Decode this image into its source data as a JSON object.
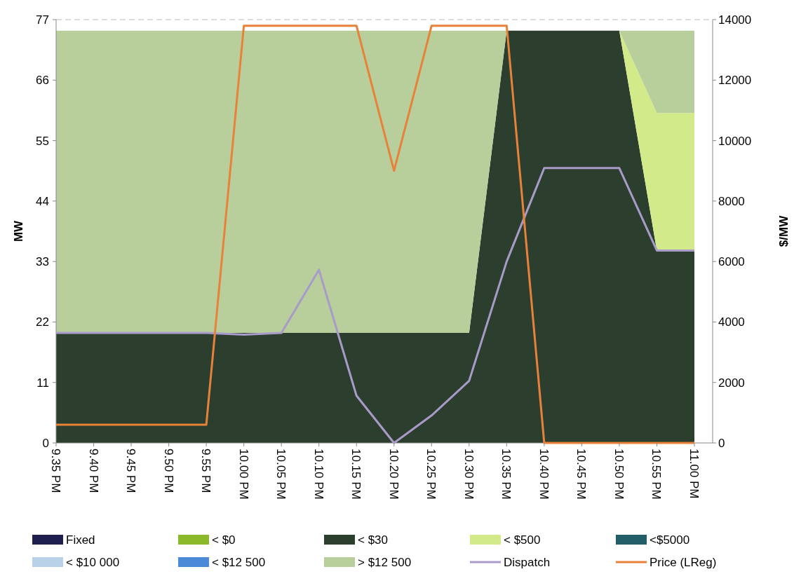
{
  "chart_data": {
    "type": "area",
    "stacked": true,
    "ylabel": "MW",
    "y2label": "$/MW",
    "categories": [
      "9.35 PM",
      "9.40 PM",
      "9.45 PM",
      "9.50 PM",
      "9.55 PM",
      "10.00 PM",
      "10.05 PM",
      "10.10 PM",
      "10.15 PM",
      "10.20 PM",
      "10.25 PM",
      "10.30 PM",
      "10.35 PM",
      "10.40 PM",
      "10.45 PM",
      "10.50 PM",
      "10.55 PM",
      "11.00 PM"
    ],
    "series": [
      {
        "name": "Fixed",
        "color": "#1f1f4f",
        "values": [
          null,
          null,
          null,
          null,
          null,
          null,
          null,
          null,
          null,
          null,
          null,
          null,
          null,
          null,
          null,
          null,
          null,
          null
        ]
      },
      {
        "name": "< $0",
        "color": "#8cb92a",
        "values": [
          null,
          null,
          null,
          null,
          null,
          null,
          null,
          null,
          null,
          null,
          null,
          null,
          null,
          null,
          null,
          null,
          null,
          null
        ]
      },
      {
        "name": "< $30",
        "color": "#2c3e2d",
        "values": [
          20,
          20,
          20,
          20,
          20,
          20,
          20,
          20,
          20,
          20,
          20,
          20,
          75,
          75,
          75,
          75,
          35,
          35
        ]
      },
      {
        "name": "< $500",
        "color": "#d3ea8b",
        "values": [
          0,
          0,
          0,
          0,
          0,
          0,
          0,
          0,
          0,
          0,
          0,
          0,
          0,
          0,
          0,
          0,
          25,
          25
        ]
      },
      {
        "name": "<$5000",
        "color": "#215e6a",
        "values": [
          null,
          null,
          null,
          null,
          null,
          null,
          null,
          null,
          null,
          null,
          null,
          null,
          null,
          null,
          null,
          null,
          null,
          null
        ]
      },
      {
        "name": "< $10 000",
        "color": "#b8d0e8",
        "values": [
          null,
          null,
          null,
          null,
          null,
          null,
          null,
          null,
          null,
          null,
          null,
          null,
          null,
          null,
          null,
          null,
          null,
          null
        ]
      },
      {
        "name": "< $12 500",
        "color": "#4a8ad6",
        "values": [
          null,
          null,
          null,
          null,
          null,
          null,
          null,
          null,
          null,
          null,
          null,
          null,
          null,
          null,
          null,
          null,
          null,
          null
        ]
      },
      {
        "name": "> $12 500",
        "color": "#b8cf9b",
        "values": [
          55,
          55,
          55,
          55,
          55,
          55,
          55,
          55,
          55,
          55,
          55,
          55,
          0,
          null,
          null,
          0,
          15,
          15
        ]
      },
      {
        "name": "Dispatch",
        "type": "line",
        "color": "#a99bc9",
        "values": [
          20,
          20,
          20,
          20,
          20,
          19.7,
          20,
          31.5,
          8.6,
          0,
          5,
          11.3,
          33,
          50,
          50,
          50,
          35,
          35
        ]
      },
      {
        "name": "Price (LReg)",
        "type": "line",
        "axis": "y2",
        "color": "#e8823a",
        "values": [
          600,
          600,
          600,
          600,
          600,
          13800,
          13800,
          13800,
          13800,
          9000,
          13800,
          13800,
          13800,
          0,
          0,
          0,
          0,
          0
        ]
      }
    ],
    "ylim": [
      0,
      77
    ],
    "yticks": [
      0,
      11,
      22,
      33,
      44,
      55,
      66,
      77
    ],
    "y2lim": [
      0,
      14000
    ],
    "y2ticks": [
      0,
      2000,
      4000,
      6000,
      8000,
      10000,
      12000,
      14000
    ],
    "legend": "bottom",
    "marker": "none",
    "line_style": "solid"
  }
}
